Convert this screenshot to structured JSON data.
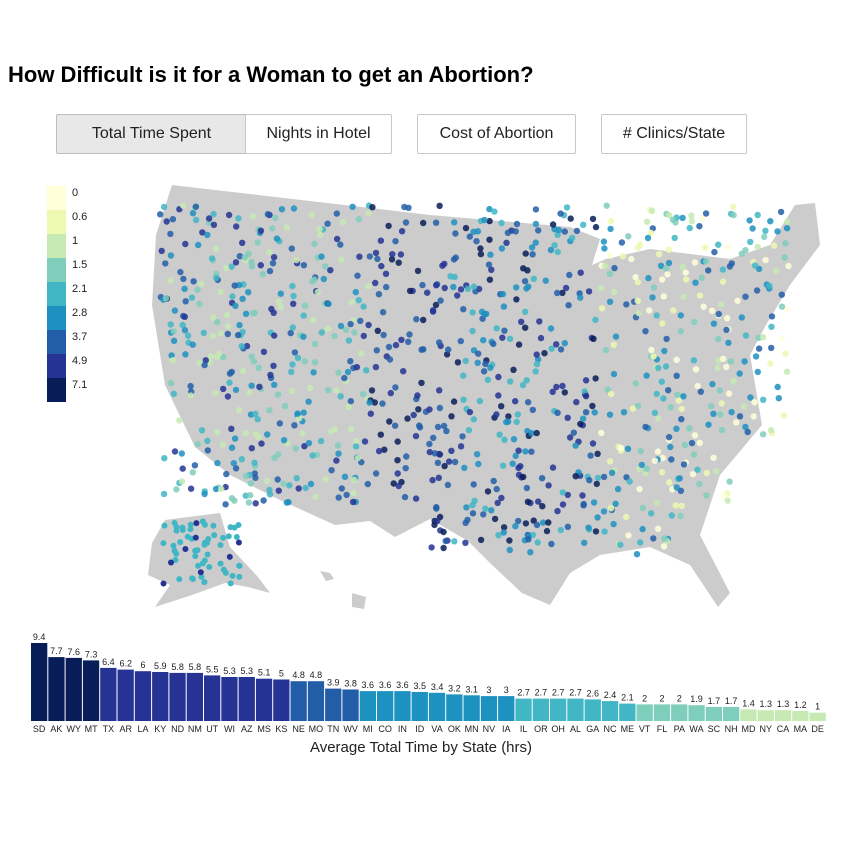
{
  "title": "How Difficult is it for a Woman to get an Abortion?",
  "tabs": [
    {
      "label": "Total Time Spent",
      "active": true
    },
    {
      "label": "Nights in Hotel",
      "active": false
    },
    {
      "label": "Cost of Abortion",
      "active": false
    },
    {
      "label": "# Clinics/State",
      "active": false
    }
  ],
  "legend": {
    "items": [
      {
        "label": "0",
        "color": "#ffffd9"
      },
      {
        "label": "0.6",
        "color": "#edf8b1"
      },
      {
        "label": "1",
        "color": "#c7e9b4"
      },
      {
        "label": "1.5",
        "color": "#7fcdbb"
      },
      {
        "label": "2.1",
        "color": "#41b6c4"
      },
      {
        "label": "2.8",
        "color": "#1d91c0"
      },
      {
        "label": "3.7",
        "color": "#225ea8"
      },
      {
        "label": "4.9",
        "color": "#253494"
      },
      {
        "label": "7.1",
        "color": "#081d58"
      }
    ]
  },
  "colors": {
    "land": "#cccccc",
    "palette": [
      "#ffffd9",
      "#edf8b1",
      "#c7e9b4",
      "#7fcdbb",
      "#41b6c4",
      "#1d91c0",
      "#225ea8",
      "#253494",
      "#081d58"
    ]
  },
  "chart_data": {
    "type": "bar",
    "title": "",
    "xlabel": "Average Total Time by State (hrs)",
    "ylabel": "",
    "categories": [
      "SD",
      "AK",
      "WY",
      "MT",
      "TX",
      "AR",
      "LA",
      "KY",
      "ND",
      "NM",
      "UT",
      "WI",
      "AZ",
      "MS",
      "KS",
      "NE",
      "MO",
      "TN",
      "WV",
      "MI",
      "CO",
      "IN",
      "ID",
      "VA",
      "OK",
      "MN",
      "NV",
      "IA",
      "IL",
      "OR",
      "OH",
      "AL",
      "GA",
      "NC",
      "ME",
      "VT",
      "FL",
      "PA",
      "WA",
      "SC",
      "NH",
      "MD",
      "NY",
      "CA",
      "MA",
      "DE"
    ],
    "values": [
      9.4,
      7.7,
      7.6,
      7.3,
      6.4,
      6.2,
      6,
      5.9,
      5.8,
      5.8,
      5.5,
      5.3,
      5.3,
      5.1,
      5,
      4.8,
      4.8,
      3.9,
      3.8,
      3.6,
      3.6,
      3.6,
      3.5,
      3.4,
      3.2,
      3.1,
      3,
      3,
      2.7,
      2.7,
      2.7,
      2.7,
      2.6,
      2.4,
      2.1,
      2,
      2,
      2,
      1.9,
      1.7,
      1.7,
      1.4,
      1.3,
      1.3,
      1.2,
      1
    ],
    "value_labels": [
      "9.4",
      "7.7",
      "7.6",
      "7.3",
      "6.4",
      "6.2",
      "6",
      "5.9",
      "5.8",
      "5.8",
      "5.5",
      "5.3",
      "5.3",
      "5.1",
      "5",
      "4.8",
      "4.8",
      "3.9",
      "3.8",
      "3.6",
      "3.6",
      "3.6",
      "3.5",
      "3.4",
      "3.2",
      "3.1",
      "3",
      "3",
      "2.7",
      "2.7",
      "2.7",
      "2.7",
      "2.6",
      "2.4",
      "2.1",
      "2",
      "2",
      "2",
      "1.9",
      "1.7",
      "1.7",
      "1.4",
      "1.3",
      "1.3",
      "1.2",
      "1"
    ],
    "ylim": [
      0,
      9.4
    ]
  }
}
